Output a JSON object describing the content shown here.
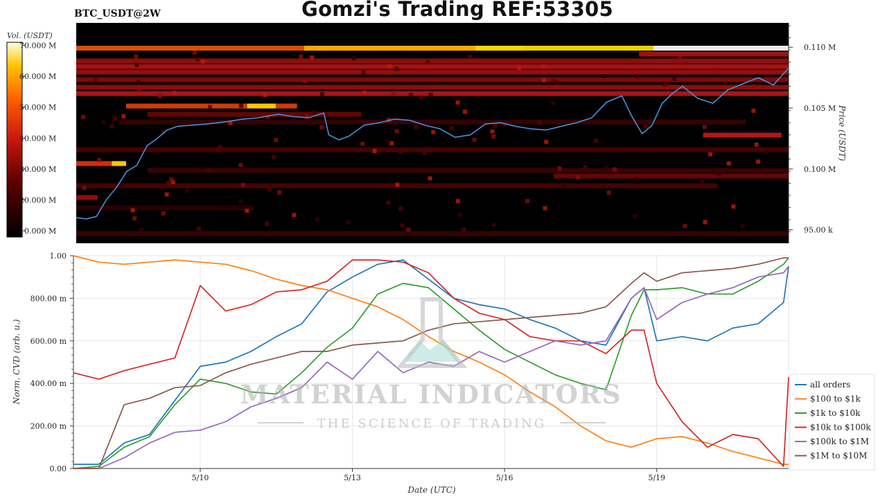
{
  "header": {
    "symbol": "BTC_USDT@2W",
    "title": "Gomzi's Trading REF:53305"
  },
  "watermark": {
    "line1": "MATERIAL INDICATORS",
    "line2": "THE SCIENCE OF TRADING"
  },
  "colors": {
    "all orders": "#1f77b4",
    "$100 to $1k": "#ff7f0e",
    "$1k to $10k": "#2ca02c",
    "$10k to $100k": "#d62728",
    "$100k to $1M": "#9467bd",
    "$1M to $10M": "#8c564b",
    "price": "#4a90d9"
  },
  "chart_data": [
    {
      "type": "heatmap",
      "title": "Gomzi's Trading REF:53305",
      "ylabel": "Price (USDT)",
      "colorbar_label": "Vol. (USDT)",
      "colorbar_ticks": [
        "10.000 M",
        "20.000 M",
        "30.000 M",
        "40.000 M",
        "50.000 M",
        "60.000 M",
        "70.000 M"
      ],
      "colorbar_range": [
        8,
        71
      ],
      "price_ticks": [
        {
          "label": "0.110 M",
          "value": 110000
        },
        {
          "label": "0.105 M",
          "value": 105000
        },
        {
          "label": "0.100 M",
          "value": 100000
        },
        {
          "label": "95.00 k",
          "value": 95000
        }
      ],
      "ylim": [
        93900,
        112000
      ],
      "x_ticks": [
        "5/10",
        "5/13",
        "5/16",
        "5/19"
      ],
      "xlim_days": [
        0,
        14.1
      ],
      "x_tick_days": [
        2.5,
        5.5,
        8.5,
        11.5
      ],
      "price_series_days": [
        0,
        0.2,
        0.4,
        0.6,
        0.8,
        1.0,
        1.2,
        1.4,
        1.6,
        1.8,
        2.0,
        2.3,
        2.6,
        3.0,
        3.3,
        3.6,
        4.0,
        4.3,
        4.6,
        4.9,
        5.0,
        5.2,
        5.4,
        5.7,
        6.0,
        6.3,
        6.6,
        6.9,
        7.2,
        7.5,
        7.8,
        8.1,
        8.4,
        8.7,
        9.0,
        9.3,
        9.6,
        9.9,
        10.2,
        10.5,
        10.8,
        11.0,
        11.2,
        11.4,
        11.6,
        11.8,
        12.0,
        12.3,
        12.6,
        12.9,
        13.2,
        13.5,
        13.8,
        14.1
      ],
      "price_series": [
        96000,
        95900,
        96100,
        97500,
        98500,
        99800,
        100300,
        101900,
        102500,
        103200,
        103500,
        103600,
        103700,
        103900,
        104100,
        104200,
        104500,
        104300,
        104200,
        104600,
        102800,
        102400,
        102700,
        103600,
        103800,
        104100,
        104000,
        103600,
        103300,
        102600,
        102800,
        103700,
        103800,
        103500,
        103300,
        103200,
        103500,
        103800,
        104200,
        105500,
        106000,
        104300,
        102900,
        103600,
        105400,
        106200,
        106800,
        105800,
        105400,
        106500,
        107000,
        107500,
        106900,
        108300
      ]
    },
    {
      "type": "line",
      "xlabel": "Date (UTC)",
      "ylabel": "Norm. CVD (arb. u.)",
      "ylim": [
        0,
        1
      ],
      "y_ticks": [
        "0.00",
        "200.00 m",
        "400.00 m",
        "600.00 m",
        "800.00 m",
        "1.00"
      ],
      "y_tick_values": [
        0,
        0.2,
        0.4,
        0.6,
        0.8,
        1.0
      ],
      "x_ticks": [
        "5/10",
        "5/13",
        "5/16",
        "5/19"
      ],
      "xlim_days": [
        0,
        14.1
      ],
      "x_tick_days": [
        2.5,
        5.5,
        8.5,
        11.5
      ],
      "legend_location": "lower-right",
      "x_days": [
        0,
        0.5,
        1.0,
        1.5,
        2.0,
        2.5,
        3.0,
        3.5,
        4.0,
        4.5,
        5.0,
        5.5,
        6.0,
        6.5,
        7.0,
        7.5,
        8.0,
        8.5,
        9.0,
        9.5,
        10.0,
        10.5,
        11.0,
        11.25,
        11.5,
        12.0,
        12.5,
        13.0,
        13.5,
        14.0,
        14.1
      ],
      "series": [
        {
          "name": "all orders",
          "values": [
            0.02,
            0.02,
            0.12,
            0.16,
            0.32,
            0.48,
            0.5,
            0.55,
            0.62,
            0.68,
            0.83,
            0.9,
            0.96,
            0.98,
            0.89,
            0.8,
            0.77,
            0.75,
            0.7,
            0.66,
            0.6,
            0.58,
            0.8,
            0.85,
            0.6,
            0.62,
            0.6,
            0.66,
            0.68,
            0.78,
            0.95
          ]
        },
        {
          "name": "$100 to $1k",
          "values": [
            1.0,
            0.97,
            0.96,
            0.97,
            0.98,
            0.97,
            0.96,
            0.93,
            0.89,
            0.86,
            0.84,
            0.8,
            0.76,
            0.7,
            0.62,
            0.55,
            0.5,
            0.44,
            0.36,
            0.29,
            0.2,
            0.13,
            0.1,
            0.12,
            0.14,
            0.15,
            0.12,
            0.08,
            0.05,
            0.02,
            0.02
          ]
        },
        {
          "name": "$1k to $10k",
          "values": [
            0.0,
            0.01,
            0.1,
            0.15,
            0.3,
            0.42,
            0.4,
            0.36,
            0.35,
            0.45,
            0.57,
            0.66,
            0.82,
            0.87,
            0.85,
            0.75,
            0.65,
            0.56,
            0.5,
            0.44,
            0.4,
            0.37,
            0.72,
            0.84,
            0.84,
            0.85,
            0.82,
            0.82,
            0.88,
            0.96,
            0.99
          ]
        },
        {
          "name": "$10k to $100k",
          "values": [
            0.45,
            0.42,
            0.46,
            0.49,
            0.52,
            0.86,
            0.74,
            0.77,
            0.83,
            0.84,
            0.88,
            0.98,
            0.98,
            0.97,
            0.92,
            0.8,
            0.73,
            0.7,
            0.62,
            0.6,
            0.6,
            0.54,
            0.65,
            0.65,
            0.4,
            0.22,
            0.1,
            0.16,
            0.14,
            0.01,
            0.43
          ]
        },
        {
          "name": "$100k to $1M",
          "values": [
            0.0,
            0.0,
            0.05,
            0.12,
            0.17,
            0.18,
            0.22,
            0.29,
            0.33,
            0.38,
            0.5,
            0.42,
            0.55,
            0.45,
            0.5,
            0.48,
            0.55,
            0.5,
            0.55,
            0.6,
            0.58,
            0.6,
            0.8,
            0.85,
            0.7,
            0.78,
            0.82,
            0.85,
            0.9,
            0.92,
            0.95
          ]
        },
        {
          "name": "$1M to $10M",
          "values": [
            0.0,
            0.0,
            0.3,
            0.33,
            0.38,
            0.39,
            0.45,
            0.49,
            0.52,
            0.55,
            0.55,
            0.58,
            0.59,
            0.6,
            0.65,
            0.68,
            0.69,
            0.7,
            0.71,
            0.72,
            0.73,
            0.76,
            0.87,
            0.92,
            0.88,
            0.92,
            0.93,
            0.94,
            0.96,
            0.99,
            0.99
          ]
        }
      ]
    }
  ]
}
